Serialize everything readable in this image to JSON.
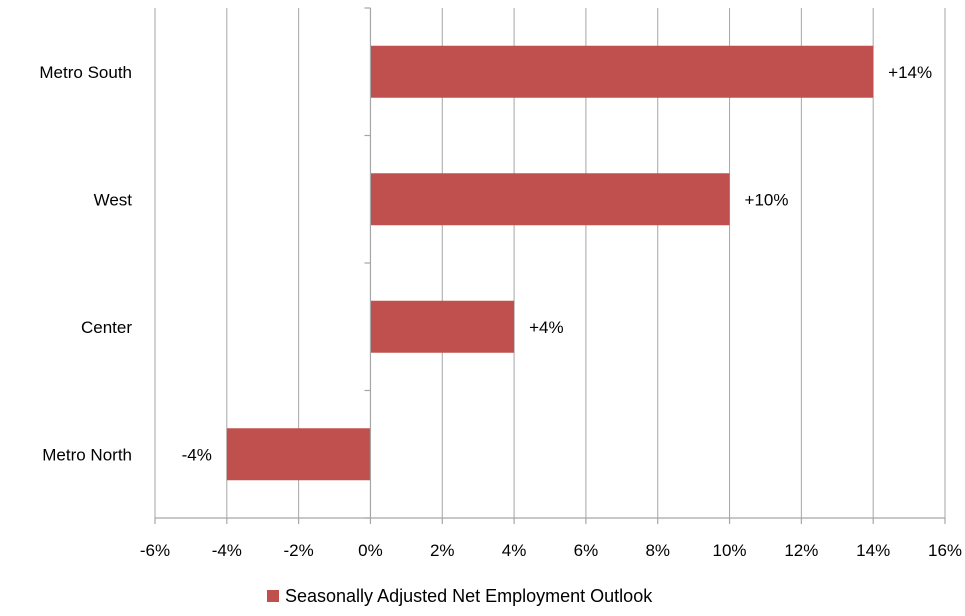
{
  "chart_data": {
    "type": "bar",
    "orientation": "horizontal",
    "categories": [
      "Metro South",
      "West",
      "Center",
      "Metro North"
    ],
    "series": [
      {
        "name": "Seasonally Adjusted Net Employment Outlook",
        "values": [
          14,
          10,
          4,
          -4
        ],
        "data_labels": [
          "+14%",
          "+10%",
          "+4%",
          "-4%"
        ],
        "color": "#c0504d"
      }
    ],
    "xlim": [
      -6,
      16
    ],
    "xticks": [
      -6,
      -4,
      -2,
      0,
      2,
      4,
      6,
      8,
      10,
      12,
      14,
      16
    ],
    "xtick_labels": [
      "-6%",
      "-4%",
      "-2%",
      "0%",
      "2%",
      "4%",
      "6%",
      "8%",
      "10%",
      "12%",
      "14%",
      "16%"
    ],
    "grid": "vertical",
    "legend_position": "bottom",
    "title": "",
    "xlabel": "",
    "ylabel": ""
  }
}
